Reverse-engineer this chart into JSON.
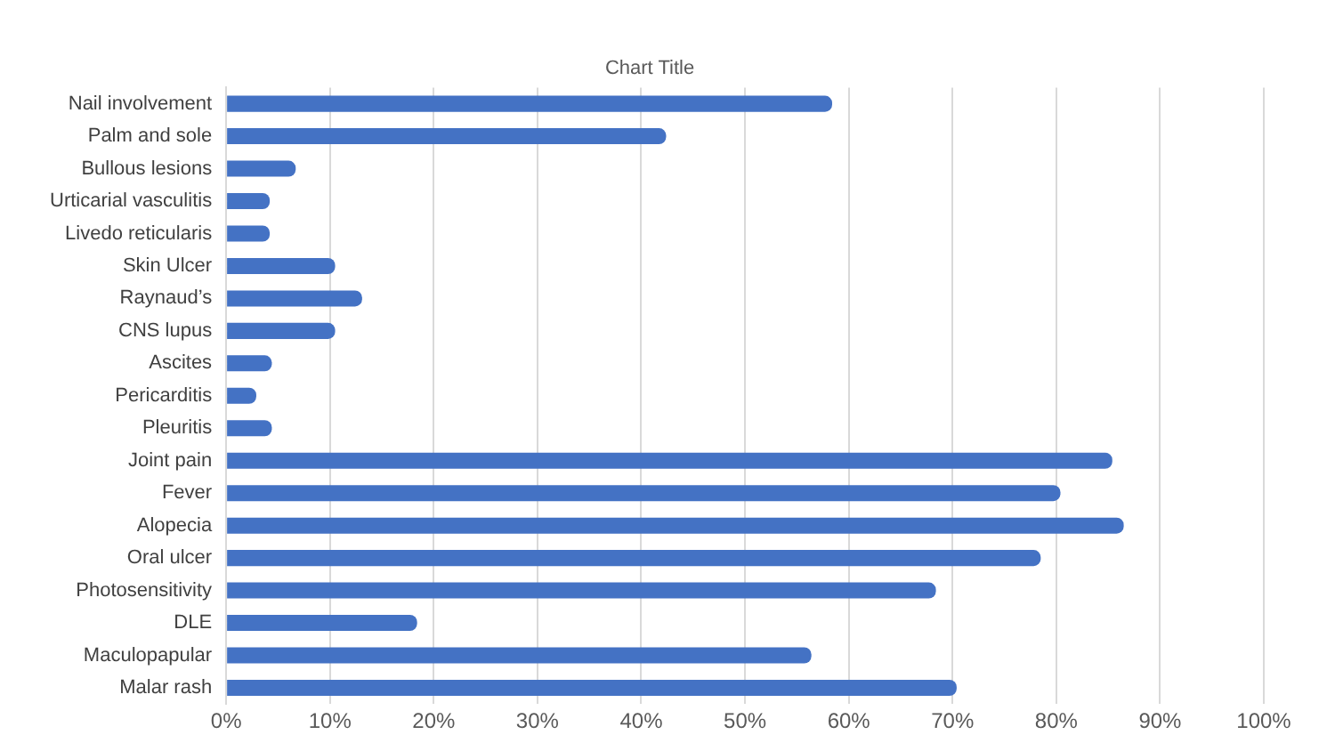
{
  "chart_data": {
    "type": "bar",
    "orientation": "horizontal",
    "title": "Chart Title",
    "categories": [
      "Nail involvement",
      "Palm and sole",
      "Bullous lesions",
      "Urticarial vasculitis",
      "Livedo reticularis",
      "Skin Ulcer",
      "Raynaud’s",
      "CNS lupus",
      "Ascites",
      "Pericarditis",
      "Pleuritis",
      "Joint pain",
      "Fever",
      "Alopecia",
      "Oral ulcer",
      "Photosensitivity",
      "DLE",
      "Maculopapular",
      "Malar rash"
    ],
    "values": [
      58.4,
      42.4,
      6.7,
      4.2,
      4.2,
      10.5,
      13.1,
      10.5,
      4.4,
      2.9,
      4.4,
      85.4,
      80.4,
      86.5,
      78.5,
      68.4,
      18.4,
      56.4,
      70.4
    ],
    "color": "#4472c4",
    "xlim": [
      0,
      100
    ],
    "xticks": [
      {
        "value": 0,
        "label": "0%"
      },
      {
        "value": 10,
        "label": "10%"
      },
      {
        "value": 20,
        "label": "20%"
      },
      {
        "value": 30,
        "label": "30%"
      },
      {
        "value": 40,
        "label": "40%"
      },
      {
        "value": 50,
        "label": "50%"
      },
      {
        "value": 60,
        "label": "60%"
      },
      {
        "value": 70,
        "label": "70%"
      },
      {
        "value": 80,
        "label": "80%"
      },
      {
        "value": 90,
        "label": "90%"
      },
      {
        "value": 100,
        "label": "100%"
      }
    ],
    "grid": "x",
    "legend": false
  }
}
